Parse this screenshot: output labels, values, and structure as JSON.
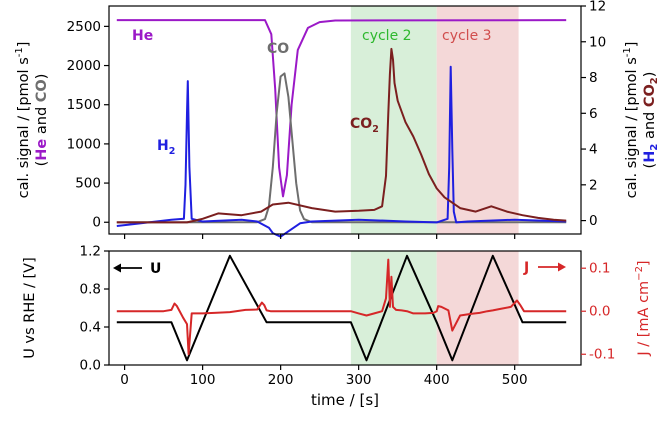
{
  "chart_data": [
    {
      "type": "line",
      "panel": "top",
      "xlim": [
        -20,
        585
      ],
      "ylim_left": [
        -150,
        2760
      ],
      "ylim_right": [
        -0.75,
        12
      ],
      "yticks_left": [
        "0",
        "500",
        "1000",
        "1500",
        "2000",
        "2500"
      ],
      "yticks_right": [
        "0",
        "2",
        "4",
        "6",
        "8",
        "10",
        "12"
      ],
      "ylabel_left": {
        "main": "cal. signal / [pmol s",
        "sup": "-1",
        "end": "]",
        "sub_open": "(",
        "sub_a": "He",
        "sub_mid": " and ",
        "sub_b": "CO",
        "sub_close": ")"
      },
      "ylabel_right": {
        "main": "cal. signal / [pmol s",
        "sup": "-1",
        "end": "]",
        "sub_open": "(",
        "sub_a": "H",
        "sub_a2": "2",
        "sub_mid": " and ",
        "sub_b": "CO",
        "sub_b2": "2",
        "sub_close": ")"
      },
      "shaded_regions": [
        {
          "label": "cycle 2",
          "x": [
            290,
            400
          ],
          "color": "#d8efd9",
          "text_color": "#2eb82e"
        },
        {
          "label": "cycle 3",
          "x": [
            400,
            505
          ],
          "color": "#f4d8d8",
          "text_color": "#d14d4d"
        }
      ],
      "series": [
        {
          "name": "He",
          "axis": "left",
          "color": "#9b19c7",
          "x": [
            -10,
            180,
            188,
            193,
            198,
            203,
            208,
            214,
            222,
            235,
            250,
            270,
            566
          ],
          "y": [
            2580,
            2580,
            2400,
            1700,
            700,
            330,
            600,
            1500,
            2200,
            2480,
            2555,
            2575,
            2580
          ]
        },
        {
          "name": "CO",
          "axis": "left",
          "color": "#6e6e6e",
          "x": [
            -10,
            170,
            180,
            185,
            190,
            195,
            200,
            205,
            210,
            215,
            220,
            225,
            230,
            240,
            566
          ],
          "y": [
            0,
            0,
            40,
            200,
            700,
            1400,
            1860,
            1900,
            1600,
            1050,
            500,
            150,
            40,
            0,
            0
          ]
        },
        {
          "name": "H2",
          "axis": "right",
          "color": "#1f1fe0",
          "x": [
            -10,
            60,
            76,
            78,
            80,
            81,
            83,
            86,
            100,
            150,
            170,
            185,
            190,
            200,
            210,
            225,
            240,
            300,
            360,
            400,
            414,
            416,
            418,
            420,
            422,
            425,
            440,
            500,
            566
          ],
          "y": [
            -0.3,
            0.05,
            0.1,
            2,
            6,
            7.8,
            3,
            0.1,
            -0.05,
            0.05,
            -0.05,
            -0.4,
            -0.7,
            -0.9,
            -0.6,
            -0.15,
            -0.05,
            0.05,
            -0.05,
            -0.1,
            0.1,
            3,
            8.6,
            4,
            0.5,
            -0.1,
            -0.05,
            0.05,
            -0.05
          ]
        },
        {
          "name": "CO2",
          "axis": "right",
          "color": "#7b1f1f",
          "x": [
            -10,
            80,
            100,
            120,
            150,
            175,
            190,
            210,
            240,
            270,
            300,
            320,
            330,
            335,
            338,
            340,
            342,
            344,
            346,
            350,
            360,
            370,
            380,
            390,
            400,
            410,
            420,
            430,
            450,
            470,
            490,
            510,
            530,
            550,
            566
          ],
          "y": [
            -0.1,
            -0.1,
            0.1,
            0.4,
            0.3,
            0.5,
            0.9,
            1.0,
            0.7,
            0.5,
            0.55,
            0.6,
            0.8,
            2.5,
            6,
            8.2,
            9.6,
            9.0,
            7.7,
            6.7,
            5.5,
            4.7,
            3.7,
            2.6,
            1.8,
            1.3,
            1.0,
            0.7,
            0.5,
            0.8,
            0.5,
            0.3,
            0.15,
            0.05,
            0
          ]
        }
      ],
      "labels": [
        {
          "text": "He",
          "color": "#9b19c7",
          "series": "He"
        },
        {
          "text": "CO",
          "color": "#6e6e6e",
          "series": "CO"
        },
        {
          "text": "H",
          "sub": "2",
          "color": "#1f1fe0",
          "series": "H2"
        },
        {
          "text": "CO",
          "sub": "2",
          "color": "#7b1f1f",
          "series": "CO2"
        },
        {
          "text": "cycle 2",
          "color": "#2eb82e"
        },
        {
          "text": "cycle 3",
          "color": "#d14d4d"
        }
      ]
    },
    {
      "type": "line",
      "panel": "bottom",
      "xlim": [
        -20,
        585
      ],
      "ylim_left": [
        0.0,
        1.2
      ],
      "ylim_right": [
        -0.125,
        0.14
      ],
      "xticks": [
        "0",
        "100",
        "200",
        "300",
        "400",
        "500"
      ],
      "yticks_left": [
        "0.0",
        "0.4",
        "0.8",
        "1.2"
      ],
      "yticks_right": [
        "0.1",
        "0.0",
        "-0.1"
      ],
      "xlabel": "time / [s]",
      "ylabel_left": "U vs RHE / [V]",
      "ylabel_right": {
        "main": "J / [mA cm",
        "sup": "−2",
        "end": "]"
      },
      "arrow_labels": [
        {
          "text": "U",
          "color": "#000000",
          "direction": "left"
        },
        {
          "text": "J",
          "color": "#d62728",
          "direction": "right"
        }
      ],
      "series": [
        {
          "name": "U",
          "axis": "left",
          "color": "#000000",
          "x": [
            -10,
            60,
            80,
            135,
            182,
            290,
            310,
            362,
            400,
            420,
            472,
            510,
            566
          ],
          "y": [
            0.45,
            0.45,
            0.05,
            1.15,
            0.45,
            0.45,
            0.05,
            1.15,
            0.45,
            0.05,
            1.15,
            0.45,
            0.45
          ]
        },
        {
          "name": "J",
          "axis": "right",
          "color": "#d62728",
          "x": [
            -10,
            50,
            60,
            64,
            67,
            70,
            75,
            80,
            82,
            86,
            100,
            115,
            135,
            155,
            170,
            176,
            179,
            182,
            187,
            200,
            240,
            280,
            290,
            300,
            310,
            320,
            330,
            335,
            338,
            340,
            342,
            344,
            348,
            355,
            362,
            370,
            385,
            396,
            400,
            402,
            406,
            415,
            420,
            430,
            445,
            455,
            465,
            472,
            480,
            495,
            503,
            507,
            512,
            530,
            566
          ],
          "y": [
            0,
            0,
            0.003,
            0.018,
            0.012,
            0.002,
            -0.015,
            -0.03,
            -0.1,
            -0.005,
            -0.005,
            -0.004,
            -0.002,
            0.003,
            0.004,
            0.02,
            0.014,
            0.002,
            0,
            0,
            0,
            0,
            0,
            -0.005,
            -0.01,
            -0.005,
            0,
            0.03,
            0.12,
            0.01,
            0.08,
            0.01,
            0.003,
            0.002,
            0,
            -0.005,
            -0.005,
            -0.004,
            0,
            0.012,
            0.01,
            0.002,
            -0.045,
            -0.01,
            -0.006,
            -0.004,
            0,
            0.002,
            0.005,
            0.01,
            0.025,
            0.015,
            0,
            0,
            0
          ]
        }
      ]
    }
  ]
}
